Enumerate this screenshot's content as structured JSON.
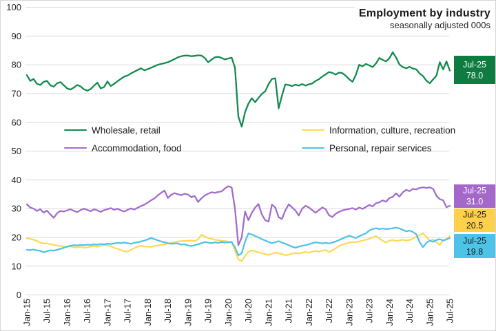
{
  "header": {
    "title": "Employment by industry",
    "subtitle": "seasonally adjusted 000s"
  },
  "colors": {
    "wholesale_line": "#128a4d",
    "information_line": "#ffd95a",
    "accommodation_line": "#a16dcb",
    "personal_line": "#4fc3e8",
    "gridline": "#d9d9d9",
    "axis_text": "#262626"
  },
  "end_labels": [
    {
      "period": "Jul-25",
      "value": "78.0",
      "series": "wholesale-retail",
      "bg": "#0e7b41",
      "fg": "#ffffff"
    },
    {
      "period": "Jul-25",
      "value": "31.0",
      "series": "accommodation-food",
      "bg": "#a368c9",
      "fg": "#ffffff"
    },
    {
      "period": "Jul-25",
      "value": "20.5",
      "series": "information-culture-recreation",
      "bg": "#ffd04a",
      "fg": "#1a1a1a"
    },
    {
      "period": "Jul-25",
      "value": "19.8",
      "series": "personal-repair-services",
      "bg": "#4ec3e8",
      "fg": "#1a1a1a"
    }
  ],
  "chart_data": {
    "type": "line",
    "title": "Employment by industry",
    "subtitle": "seasonally adjusted 000s",
    "x_start": "Jan-15",
    "x_interval": "1 month",
    "x_tick_labels": [
      "Jan-15",
      "Jul-15",
      "Jan-16",
      "Jul-16",
      "Jan-17",
      "Jul-17",
      "Jan-18",
      "Jul-18",
      "Jan-19",
      "Jul-19",
      "Jan-20",
      "Jul-20",
      "Jan-21",
      "Jul-21",
      "Jan-22",
      "Jul-22",
      "Jan-23",
      "Jul-23",
      "Jan-24",
      "Jul-24",
      "Jan-25",
      "Jul-25"
    ],
    "ylim": [
      0,
      100
    ],
    "y_ticks": [
      0,
      10,
      20,
      30,
      40,
      50,
      60,
      70,
      80,
      90,
      100
    ],
    "grid": "horizontal",
    "legend_position": "inside-middle-two-columns",
    "series": [
      {
        "name": "Wholesale, retail",
        "color_key": "wholesale_line",
        "values": [
          76.4,
          74.4,
          75.1,
          73.4,
          73.0,
          74.1,
          74.4,
          72.9,
          72.4,
          73.6,
          74.0,
          72.9,
          71.8,
          71.4,
          72.1,
          73.0,
          72.5,
          71.5,
          71.0,
          71.6,
          72.7,
          73.8,
          71.8,
          72.3,
          74.2,
          72.6,
          73.4,
          74.3,
          75.1,
          75.9,
          76.3,
          77.0,
          77.6,
          78.2,
          78.8,
          78.1,
          78.5,
          79.0,
          79.5,
          80.0,
          80.3,
          80.6,
          80.9,
          81.4,
          82.0,
          82.6,
          83.0,
          83.2,
          83.2,
          83.0,
          83.1,
          83.3,
          83.2,
          82.4,
          80.9,
          81.8,
          82.6,
          82.8,
          82.4,
          81.9,
          82.2,
          82.5,
          79.0,
          62.0,
          58.5,
          63.5,
          66.5,
          68.4,
          67.0,
          68.5,
          69.9,
          70.8,
          73.3,
          75.1,
          75.3,
          64.9,
          69.3,
          73.2,
          73.0,
          72.6,
          73.1,
          72.8,
          73.3,
          72.8,
          73.2,
          73.5,
          74.4,
          75.0,
          75.9,
          76.7,
          77.5,
          77.2,
          76.6,
          77.3,
          77.1,
          76.2,
          75.0,
          74.1,
          76.5,
          80.0,
          79.5,
          80.3,
          79.8,
          79.2,
          80.5,
          82.4,
          81.7,
          81.2,
          82.3,
          84.4,
          82.5,
          80.1,
          79.2,
          78.8,
          79.3,
          78.7,
          78.4,
          77.0,
          76.1,
          74.5,
          73.6,
          74.9,
          76.2,
          80.9,
          78.4,
          81.2,
          78.0
        ]
      },
      {
        "name": "Information, culture, recreation",
        "color_key": "information_line",
        "values": [
          19.7,
          19.5,
          19.2,
          18.8,
          18.2,
          17.9,
          17.9,
          17.7,
          17.4,
          17.2,
          17.0,
          16.8,
          16.7,
          16.9,
          16.6,
          16.5,
          16.7,
          16.4,
          16.5,
          16.8,
          17.0,
          16.8,
          17.1,
          17.3,
          17.2,
          16.9,
          16.4,
          16.0,
          15.6,
          15.2,
          15.1,
          15.7,
          16.3,
          16.8,
          17.1,
          16.8,
          16.8,
          16.7,
          17.0,
          17.2,
          17.4,
          17.6,
          17.9,
          18.1,
          18.3,
          18.6,
          18.7,
          18.8,
          18.8,
          19.0,
          18.7,
          19.3,
          20.9,
          20.3,
          19.8,
          19.5,
          19.2,
          19.0,
          18.8,
          18.7,
          18.5,
          18.3,
          15.5,
          12.3,
          11.8,
          13.5,
          15.0,
          15.5,
          15.2,
          14.8,
          14.5,
          14.2,
          13.9,
          14.3,
          14.8,
          14.5,
          14.2,
          13.8,
          14.0,
          14.3,
          14.6,
          14.4,
          14.7,
          14.9,
          14.7,
          15.0,
          15.3,
          15.1,
          15.4,
          15.6,
          14.9,
          15.5,
          16.2,
          17.0,
          17.5,
          17.9,
          18.2,
          18.4,
          18.3,
          18.6,
          18.9,
          19.2,
          19.5,
          20.0,
          20.5,
          19.6,
          18.8,
          18.2,
          18.9,
          19.1,
          18.8,
          19.0,
          19.2,
          18.9,
          19.1,
          19.5,
          20.3,
          20.8,
          21.4,
          20.2,
          18.8,
          19.3,
          18.3,
          17.4,
          19.0,
          19.5,
          20.5
        ]
      },
      {
        "name": "Accommodation, food",
        "color_key": "accommodation_line",
        "values": [
          31.5,
          30.4,
          30.0,
          29.2,
          29.8,
          28.6,
          29.3,
          28.0,
          26.8,
          28.4,
          29.2,
          29.0,
          29.4,
          29.8,
          29.2,
          28.8,
          29.5,
          30.0,
          29.6,
          29.1,
          29.8,
          29.4,
          28.9,
          29.5,
          29.8,
          30.2,
          29.6,
          30.0,
          29.4,
          29.0,
          29.6,
          30.1,
          29.7,
          30.3,
          30.9,
          31.4,
          32.1,
          32.9,
          33.6,
          34.6,
          35.5,
          36.3,
          33.7,
          34.8,
          35.4,
          35.0,
          34.7,
          35.2,
          34.9,
          34.0,
          34.4,
          32.3,
          33.6,
          34.6,
          35.2,
          35.7,
          35.5,
          35.8,
          36.0,
          37.0,
          37.8,
          37.4,
          30.0,
          17.3,
          20.0,
          29.0,
          26.0,
          28.5,
          30.4,
          31.6,
          28.0,
          26.0,
          25.5,
          31.4,
          30.4,
          27.0,
          26.4,
          29.4,
          31.5,
          30.4,
          29.4,
          27.6,
          30.0,
          31.0,
          30.4,
          29.5,
          28.6,
          29.5,
          30.4,
          29.8,
          27.7,
          27.1,
          28.2,
          28.9,
          29.4,
          29.7,
          29.9,
          30.2,
          29.7,
          30.4,
          29.9,
          30.6,
          31.3,
          30.8,
          31.9,
          32.2,
          32.9,
          32.4,
          33.7,
          34.1,
          35.3,
          34.2,
          35.7,
          36.5,
          36.1,
          36.9,
          36.7,
          37.2,
          37.4,
          37.2,
          37.4,
          36.9,
          34.5,
          33.3,
          32.9,
          30.5,
          31.0
        ]
      },
      {
        "name": "Personal, repair services",
        "color_key": "personal_line",
        "values": [
          15.7,
          15.6,
          15.8,
          15.5,
          15.3,
          14.8,
          15.2,
          15.5,
          15.4,
          15.7,
          16.0,
          16.4,
          16.8,
          17.1,
          17.3,
          17.2,
          17.4,
          17.3,
          17.5,
          17.4,
          17.6,
          17.5,
          17.7,
          17.6,
          17.8,
          17.7,
          17.9,
          18.1,
          18.0,
          18.2,
          18.0,
          17.8,
          18.1,
          18.3,
          18.6,
          18.9,
          19.3,
          19.8,
          19.4,
          19.0,
          18.6,
          18.3,
          18.0,
          17.8,
          17.9,
          17.9,
          17.5,
          17.6,
          17.2,
          17.0,
          17.3,
          17.6,
          18.0,
          18.4,
          18.2,
          18.0,
          18.3,
          18.1,
          18.4,
          18.2,
          18.3,
          18.4,
          16.5,
          13.8,
          14.5,
          18.5,
          21.4,
          21.0,
          20.5,
          20.0,
          19.4,
          18.9,
          18.4,
          18.0,
          18.3,
          18.7,
          18.2,
          17.8,
          17.3,
          16.8,
          16.4,
          16.8,
          17.1,
          17.3,
          17.6,
          18.0,
          18.3,
          18.1,
          17.9,
          18.1,
          17.9,
          18.2,
          18.6,
          19.1,
          19.6,
          20.1,
          20.6,
          20.2,
          19.8,
          20.4,
          20.9,
          21.4,
          22.4,
          22.9,
          23.2,
          22.9,
          23.1,
          22.9,
          23.0,
          23.2,
          23.4,
          23.1,
          22.6,
          22.1,
          22.4,
          21.9,
          21.1,
          18.4,
          16.6,
          18.1,
          18.9,
          18.5,
          19.1,
          19.4,
          18.9,
          19.3,
          19.8
        ]
      }
    ]
  }
}
